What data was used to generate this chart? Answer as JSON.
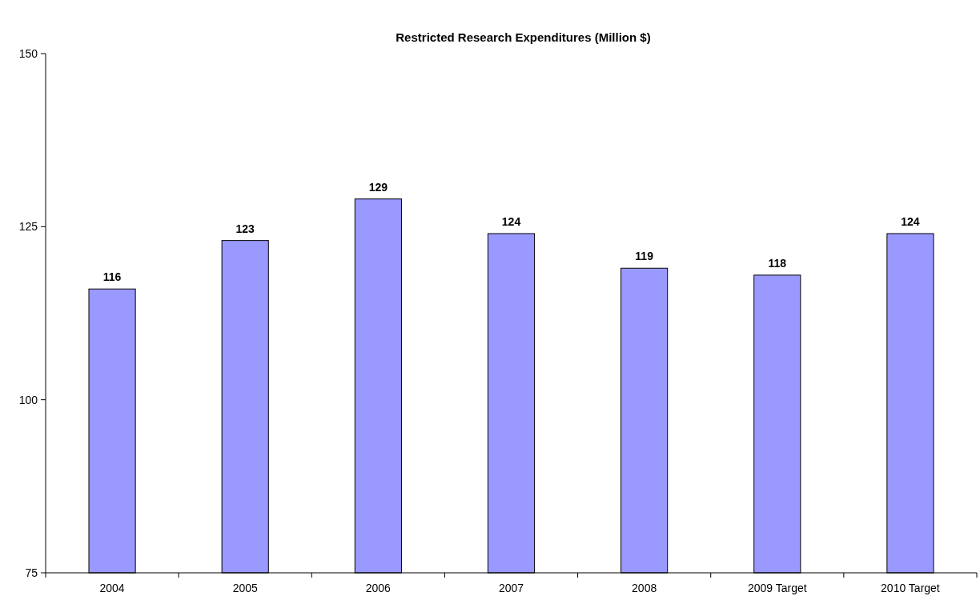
{
  "chart_data": {
    "type": "bar",
    "title": "Restricted Research Expenditures (Million $)",
    "categories": [
      "2004",
      "2005",
      "2006",
      "2007",
      "2008",
      "2009 Target",
      "2010 Target"
    ],
    "values": [
      116,
      123,
      129,
      124,
      119,
      118,
      124
    ],
    "color": "#9999ff",
    "ylim": [
      75,
      150
    ],
    "yticks": [
      75,
      100,
      125,
      150
    ],
    "data_labels": true,
    "grid": false
  }
}
